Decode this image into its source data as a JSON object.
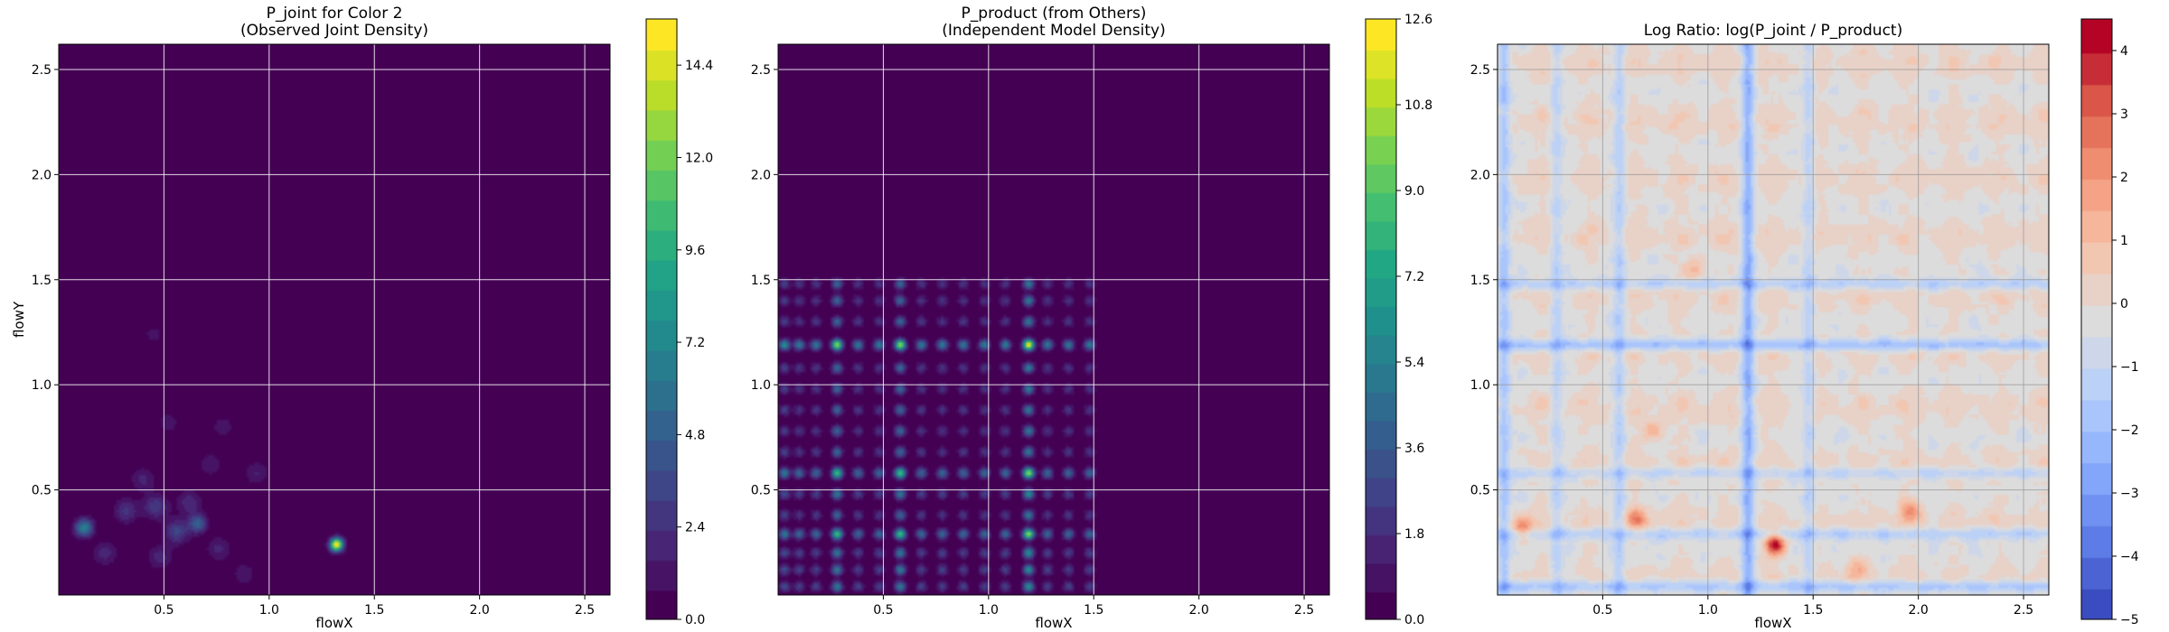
{
  "chart_data": [
    {
      "type": "heatmap",
      "title": "P_joint for Color 2",
      "subtitle": "(Observed Joint Density)",
      "xlabel": "flowX",
      "ylabel": "flowY",
      "xlim": [
        0.0,
        2.62
      ],
      "ylim": [
        0.0,
        2.62
      ],
      "xticks": [
        "0.5",
        "1.0",
        "1.5",
        "2.0",
        "2.5"
      ],
      "yticks": [
        "0.5",
        "1.0",
        "1.5",
        "2.0",
        "2.5"
      ],
      "grid": true,
      "colormap": "viridis",
      "colorbar": {
        "min": 0.0,
        "max": 15.6,
        "levels": 20,
        "ticks": [
          "0.0",
          "2.4",
          "4.8",
          "7.2",
          "9.6",
          "12.0",
          "14.4"
        ]
      },
      "peaks": [
        {
          "x": 1.32,
          "y": 0.24,
          "value": 15.6
        },
        {
          "x": 0.12,
          "y": 0.32,
          "value": 6.8
        },
        {
          "x": 0.66,
          "y": 0.34,
          "value": 5.0
        },
        {
          "x": 0.56,
          "y": 0.3,
          "value": 3.4
        },
        {
          "x": 0.46,
          "y": 0.42,
          "value": 3.0
        },
        {
          "x": 0.32,
          "y": 0.4,
          "value": 2.6
        },
        {
          "x": 0.62,
          "y": 0.44,
          "value": 2.2
        },
        {
          "x": 0.4,
          "y": 0.55,
          "value": 1.8
        },
        {
          "x": 0.48,
          "y": 0.18,
          "value": 2.0
        },
        {
          "x": 0.76,
          "y": 0.22,
          "value": 1.8
        },
        {
          "x": 0.94,
          "y": 0.58,
          "value": 1.6
        },
        {
          "x": 0.72,
          "y": 0.62,
          "value": 1.4
        },
        {
          "x": 0.52,
          "y": 0.82,
          "value": 1.2
        },
        {
          "x": 0.78,
          "y": 0.8,
          "value": 1.2
        },
        {
          "x": 0.45,
          "y": 1.24,
          "value": 1.0
        },
        {
          "x": 0.88,
          "y": 0.1,
          "value": 1.3
        },
        {
          "x": 0.22,
          "y": 0.2,
          "value": 2.0
        }
      ]
    },
    {
      "type": "heatmap",
      "title": "P_product (from Others)",
      "subtitle": "(Independent Model Density)",
      "xlabel": "flowX",
      "ylabel": "",
      "xlim": [
        0.0,
        2.62
      ],
      "ylim": [
        0.0,
        2.62
      ],
      "xticks": [
        "0.5",
        "1.0",
        "1.5",
        "2.0",
        "2.5"
      ],
      "yticks": [
        "0.5",
        "1.0",
        "1.5",
        "2.0",
        "2.5"
      ],
      "grid": true,
      "colormap": "viridis",
      "colorbar": {
        "min": 0.0,
        "max": 12.6,
        "levels": 21,
        "ticks": [
          "0.0",
          "1.8",
          "3.6",
          "5.4",
          "7.2",
          "9.0",
          "10.8",
          "12.6"
        ]
      },
      "x_marginal_peaks": [
        {
          "x": 0.03,
          "w": 0.6
        },
        {
          "x": 0.1,
          "w": 0.5
        },
        {
          "x": 0.18,
          "w": 0.5
        },
        {
          "x": 0.28,
          "w": 1.0
        },
        {
          "x": 0.38,
          "w": 0.5
        },
        {
          "x": 0.48,
          "w": 0.5
        },
        {
          "x": 0.58,
          "w": 1.0
        },
        {
          "x": 0.68,
          "w": 0.5
        },
        {
          "x": 0.78,
          "w": 0.5
        },
        {
          "x": 0.88,
          "w": 0.5
        },
        {
          "x": 0.98,
          "w": 0.5
        },
        {
          "x": 1.08,
          "w": 0.5
        },
        {
          "x": 1.19,
          "w": 1.2
        },
        {
          "x": 1.28,
          "w": 0.5
        },
        {
          "x": 1.38,
          "w": 0.5
        },
        {
          "x": 1.48,
          "w": 0.5
        }
      ],
      "y_marginal_peaks": [
        {
          "y": 0.04,
          "w": 0.6
        },
        {
          "y": 0.12,
          "w": 0.6
        },
        {
          "y": 0.2,
          "w": 0.6
        },
        {
          "y": 0.29,
          "w": 1.0
        },
        {
          "y": 0.38,
          "w": 0.5
        },
        {
          "y": 0.48,
          "w": 0.6
        },
        {
          "y": 0.58,
          "w": 1.0
        },
        {
          "y": 0.68,
          "w": 0.5
        },
        {
          "y": 0.78,
          "w": 0.5
        },
        {
          "y": 0.88,
          "w": 0.5
        },
        {
          "y": 0.98,
          "w": 0.5
        },
        {
          "y": 1.08,
          "w": 0.5
        },
        {
          "y": 1.19,
          "w": 1.2
        },
        {
          "y": 1.3,
          "w": 0.5
        },
        {
          "y": 1.4,
          "w": 0.5
        },
        {
          "y": 1.48,
          "w": 0.5
        }
      ],
      "peak_value": 12.6
    },
    {
      "type": "heatmap",
      "title": "Log Ratio: log(P_joint / P_product)",
      "subtitle": "",
      "xlabel": "flowX",
      "ylabel": "",
      "xlim": [
        0.0,
        2.62
      ],
      "ylim": [
        0.0,
        2.62
      ],
      "xticks": [
        "0.5",
        "1.0",
        "1.5",
        "2.0",
        "2.5"
      ],
      "yticks": [
        "0.5",
        "1.0",
        "1.5",
        "2.0",
        "2.5"
      ],
      "grid": true,
      "colormap": "coolwarm",
      "colorbar": {
        "min": -5,
        "max": 4.5,
        "levels": 19,
        "ticks": [
          "−5",
          "−4",
          "−3",
          "−2",
          "−1",
          "0",
          "1",
          "2",
          "3",
          "4"
        ]
      },
      "hotspots": [
        {
          "x": 1.32,
          "y": 0.24,
          "value": 4.2
        },
        {
          "x": 0.12,
          "y": 0.32,
          "value": 2.6
        },
        {
          "x": 0.66,
          "y": 0.36,
          "value": 2.2
        },
        {
          "x": 1.96,
          "y": 0.4,
          "value": 2.0
        },
        {
          "x": 0.94,
          "y": 1.55,
          "value": 1.6
        },
        {
          "x": 0.74,
          "y": 0.78,
          "value": 1.6
        },
        {
          "x": 1.7,
          "y": 0.12,
          "value": 1.4
        }
      ],
      "coldlines": [
        {
          "axis": "x",
          "pos": 1.19,
          "value": -2.2
        },
        {
          "axis": "y",
          "pos": 1.19,
          "value": -2.0
        },
        {
          "axis": "x",
          "pos": 0.03,
          "value": -1.8
        },
        {
          "axis": "y",
          "pos": 0.04,
          "value": -1.8
        },
        {
          "axis": "y",
          "pos": 0.29,
          "value": -1.4
        },
        {
          "axis": "x",
          "pos": 0.58,
          "value": -1.2
        },
        {
          "axis": "y",
          "pos": 0.58,
          "value": -1.2
        },
        {
          "axis": "x",
          "pos": 0.28,
          "value": -1.0
        },
        {
          "axis": "y",
          "pos": 1.48,
          "value": -1.4
        },
        {
          "axis": "x",
          "pos": 1.48,
          "value": -1.2
        }
      ]
    }
  ]
}
